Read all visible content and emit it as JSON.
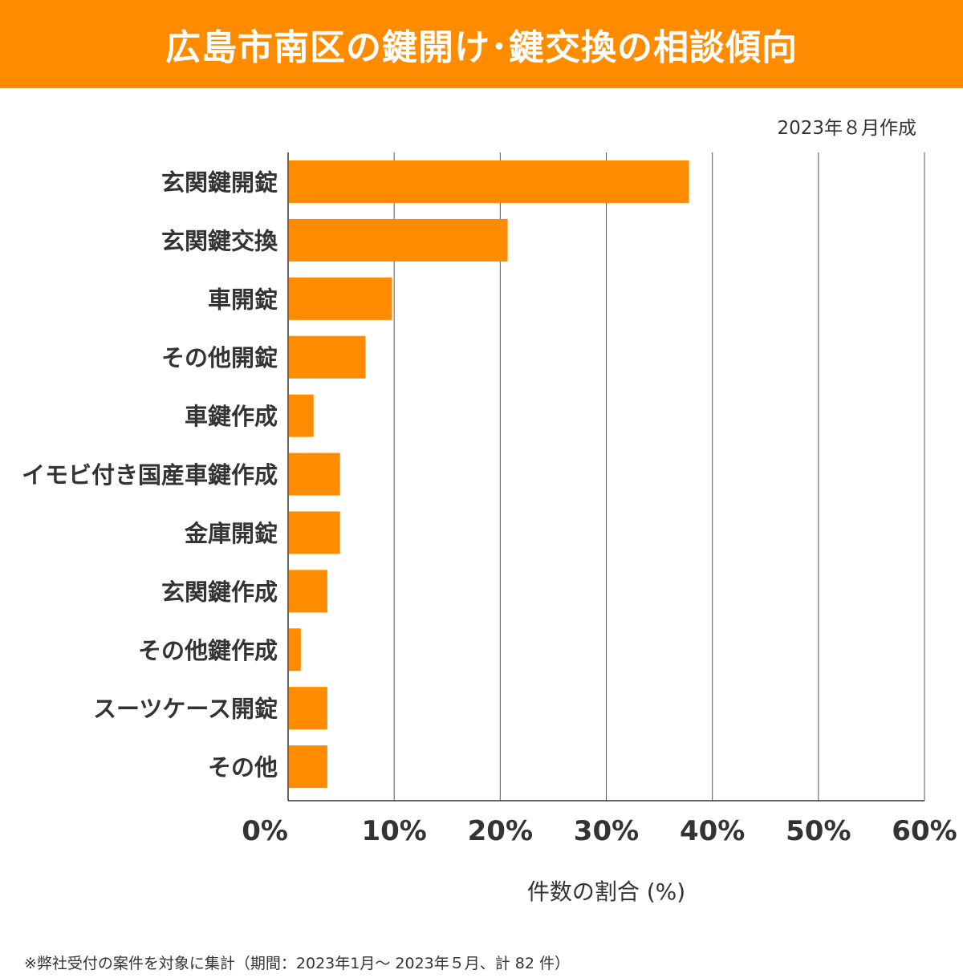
{
  "header": {
    "title": "広島市南区の鍵開け･鍵交換の相談傾向"
  },
  "date_note": "2023年８月作成",
  "footnote": "※弊社受付の案件を対象に集計（期間：2023年1月～ 2023年５月、計 82 件）",
  "colors": {
    "bar": "#FF8C00",
    "grid": "#333333"
  },
  "chart_data": {
    "type": "bar",
    "orientation": "horizontal",
    "title": "広島市南区の鍵開け･鍵交換の相談傾向",
    "categories": [
      "玄関鍵開錠",
      "玄関鍵交換",
      "車開錠",
      "その他開錠",
      "車鍵作成",
      "イモビ付き国産車鍵作成",
      "金庫開錠",
      "玄関鍵作成",
      "その他鍵作成",
      "スーツケース開錠",
      "その他"
    ],
    "values": [
      37.8,
      20.7,
      9.8,
      7.3,
      2.4,
      4.9,
      4.9,
      3.7,
      1.2,
      3.7,
      3.7
    ],
    "xlabel": "件数の割合 (%)",
    "ylabel": "",
    "xlim": [
      0,
      60
    ],
    "xticks": [
      "0%",
      "10%",
      "20%",
      "30%",
      "40%",
      "50%",
      "60%"
    ],
    "grid": true
  }
}
